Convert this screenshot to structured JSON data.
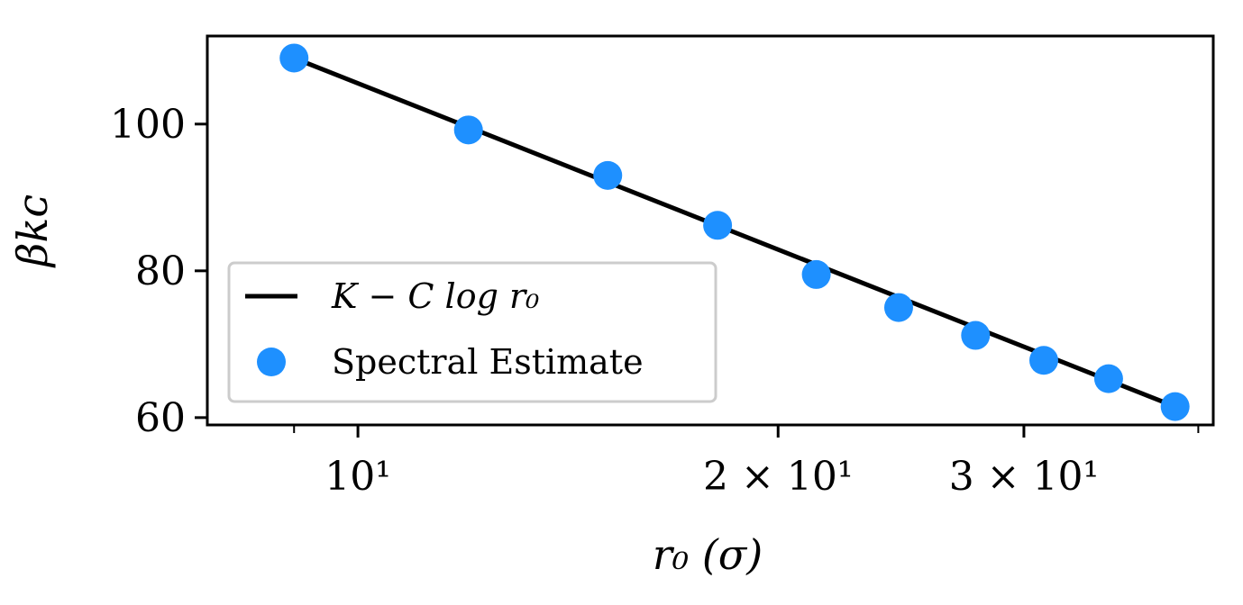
{
  "chart_data": {
    "type": "scatter",
    "x_scale": "log",
    "xlabel": "r₀ (σ)",
    "ylabel": "βkᴄ",
    "xlim": [
      7.8,
      41.0
    ],
    "ylim": [
      59.0,
      112.0
    ],
    "x_ticks": [
      {
        "value": 10,
        "label": "10¹"
      },
      {
        "value": 20,
        "label": "2 × 10¹"
      },
      {
        "value": 30,
        "label": "3 × 10¹"
      }
    ],
    "x_minor_ticks": [
      9,
      40
    ],
    "y_ticks": [
      {
        "value": 60,
        "label": "60"
      },
      {
        "value": 80,
        "label": "80"
      },
      {
        "value": 100,
        "label": "100"
      }
    ],
    "grid": false,
    "legend_position": "lower-left",
    "series": [
      {
        "name": "K − C log r₀",
        "kind": "line",
        "color": "#000000",
        "x": [
          9.0,
          38.5
        ],
        "values": [
          109.0,
          61.5
        ]
      },
      {
        "name": "Spectral Estimate",
        "kind": "scatter",
        "color": "#1e90ff",
        "x": [
          9.0,
          12.0,
          15.1,
          18.1,
          21.3,
          24.4,
          27.7,
          31.0,
          34.5,
          38.5
        ],
        "values": [
          109.0,
          99.2,
          93.0,
          86.2,
          79.5,
          75.0,
          71.2,
          67.8,
          65.3,
          61.5
        ]
      }
    ]
  }
}
